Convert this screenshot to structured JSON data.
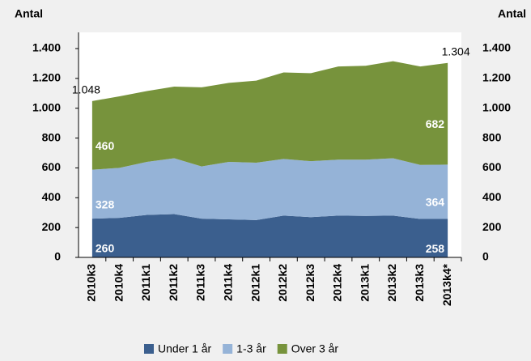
{
  "chart_data": {
    "type": "stacked_area",
    "y_label": "Antal",
    "y2_label": "Antal",
    "categories": [
      "2010k3",
      "2010k4",
      "2011k1",
      "2011k2",
      "2011k3",
      "2011k4",
      "2012k1",
      "2012k2",
      "2012k3",
      "2012k4",
      "2013k1",
      "2013k2",
      "2013k3",
      "2013k4*"
    ],
    "series": [
      {
        "name": "Under 1 år",
        "color": "#3b5f8e",
        "values": [
          260,
          265,
          285,
          290,
          260,
          255,
          250,
          280,
          270,
          280,
          278,
          280,
          258,
          258
        ],
        "value_labels": [
          "260",
          null,
          null,
          null,
          null,
          null,
          null,
          null,
          null,
          null,
          null,
          null,
          null,
          "258"
        ]
      },
      {
        "name": "1-3 år",
        "color": "#95b3d7",
        "values": [
          328,
          335,
          355,
          375,
          350,
          385,
          385,
          380,
          375,
          375,
          377,
          385,
          362,
          364
        ],
        "value_labels": [
          "328",
          null,
          null,
          null,
          null,
          null,
          null,
          null,
          null,
          null,
          null,
          null,
          null,
          "364"
        ]
      },
      {
        "name": "Over 3 år",
        "color": "#77933c",
        "values": [
          460,
          480,
          475,
          480,
          530,
          530,
          550,
          580,
          590,
          625,
          630,
          650,
          660,
          682
        ],
        "value_labels": [
          "460",
          null,
          null,
          null,
          null,
          null,
          null,
          null,
          null,
          null,
          null,
          null,
          null,
          "682"
        ]
      }
    ],
    "annotations": [
      {
        "category": "2010k3",
        "value": 1048,
        "label": "1.048"
      },
      {
        "category": "2013k4*",
        "value": 1304,
        "label": "1.304"
      }
    ],
    "ylim": [
      0,
      1400
    ],
    "yticks": [
      0,
      200,
      400,
      600,
      800,
      {
        "value": 1000,
        "label": "1.000"
      },
      {
        "value": 1200,
        "label": "1.200"
      },
      {
        "value": 1400,
        "label": "1.400"
      }
    ],
    "y2lim": [
      0,
      1400
    ],
    "y2ticks": [
      0,
      200,
      400,
      600,
      800,
      {
        "value": 1000,
        "label": "1.000"
      },
      {
        "value": 1200,
        "label": "1.200"
      },
      {
        "value": 1400,
        "label": "1.400"
      }
    ],
    "legend": "bottom"
  }
}
